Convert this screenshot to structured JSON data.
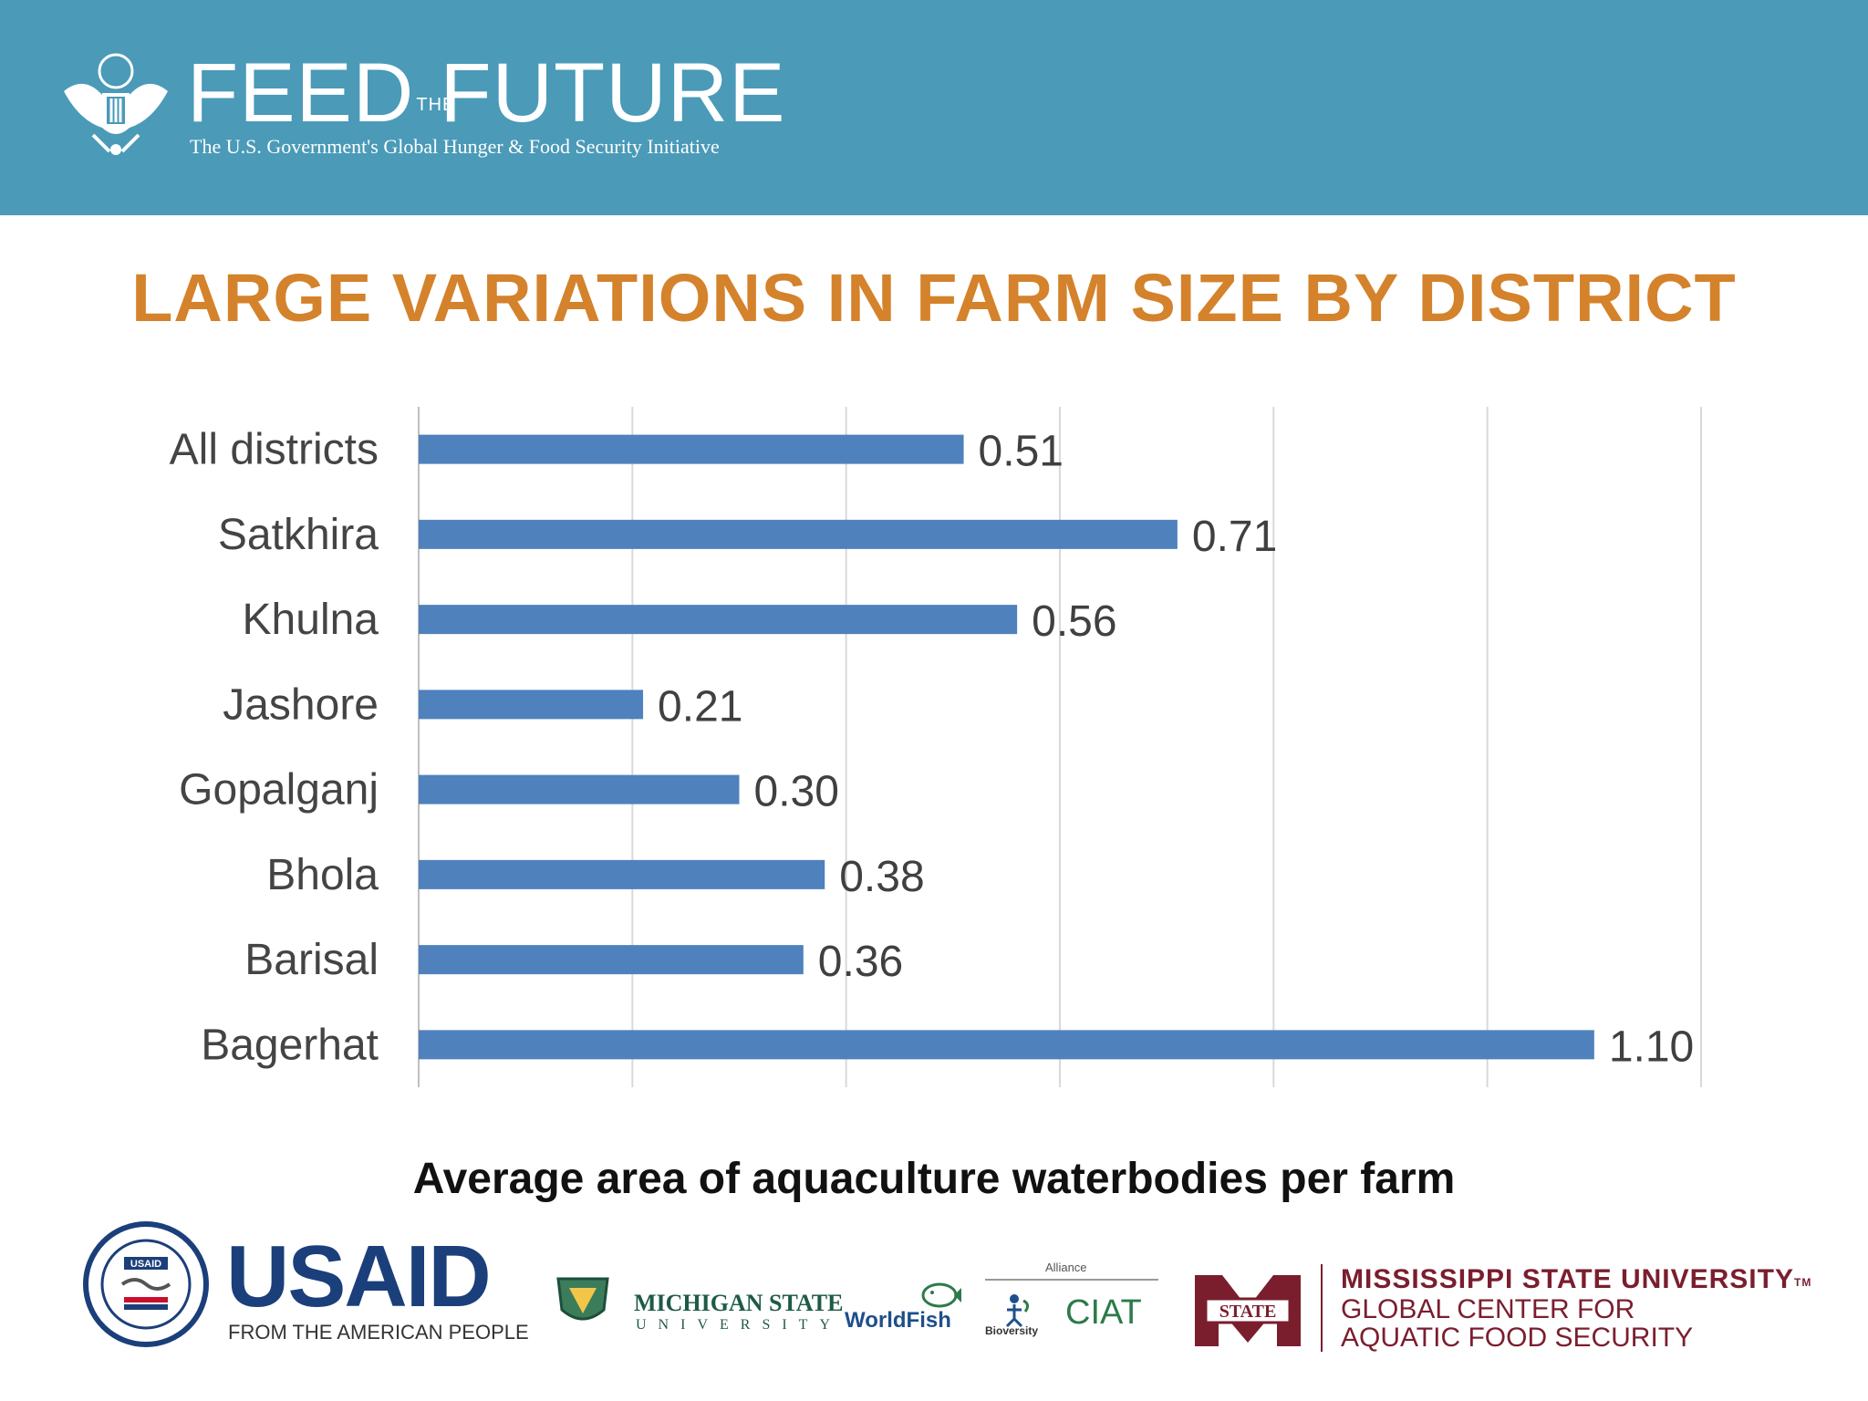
{
  "header": {
    "brand_left": "FEED",
    "brand_the": "THE",
    "brand_right": "FUTURE",
    "subtitle": "The U.S. Government's Global Hunger & Food Security Initiative",
    "background": "#4a9ab8"
  },
  "slide": {
    "headline": "LARGE VARIATIONS IN FARM SIZE BY DISTRICT",
    "headline_color": "#d4822b",
    "x_caption": "Average area of aquaculture waterbodies per farm"
  },
  "chart_data": {
    "type": "bar",
    "orientation": "horizontal",
    "categories": [
      "All districts",
      "Satkhira",
      "Khulna",
      "Jashore",
      "Gopalganj",
      "Bhola",
      "Barisal",
      "Bagerhat"
    ],
    "values": [
      0.51,
      0.71,
      0.56,
      0.21,
      0.3,
      0.38,
      0.36,
      1.1
    ],
    "data_labels": [
      "0.51",
      "0.71",
      "0.56",
      "0.21",
      "0.30",
      "0.38",
      "0.36",
      "1.10"
    ],
    "xlim": [
      0,
      1.2
    ],
    "x_gridlines": [
      0,
      0.2,
      0.4,
      0.6,
      0.8,
      1.0,
      1.2
    ],
    "grid": true,
    "bar_color": "#4f81bd",
    "xlabel": "Average area of aquaculture waterbodies per farm",
    "ylabel": ""
  },
  "footer": {
    "usaid_word": "USAID",
    "usaid_tagline": "FROM THE AMERICAN PEOPLE",
    "usaid_seal_text": "USAID",
    "msu_name": "MICHIGAN STATE",
    "msu_university": "UNIVERSITY",
    "worldfish": "WorldFish",
    "alliance_label": "Alliance",
    "bioversity": "Bioversity",
    "ciat": "CIAT",
    "mstate_mark": "STATE",
    "mstate_name": "MISSISSIPPI STATE UNIVERSITY",
    "mstate_tm": "TM",
    "mstate_line1": "GLOBAL CENTER FOR",
    "mstate_line2": "AQUATIC FOOD SECURITY"
  },
  "icons": {
    "header_seal": "eagle-seal-icon",
    "usaid_seal": "usaid-seal-icon",
    "crest": "shield-crest-icon",
    "worldfish_mark": "fish-icon",
    "bioversity_mark": "person-plant-icon",
    "mstate_mark": "m-state-icon"
  }
}
